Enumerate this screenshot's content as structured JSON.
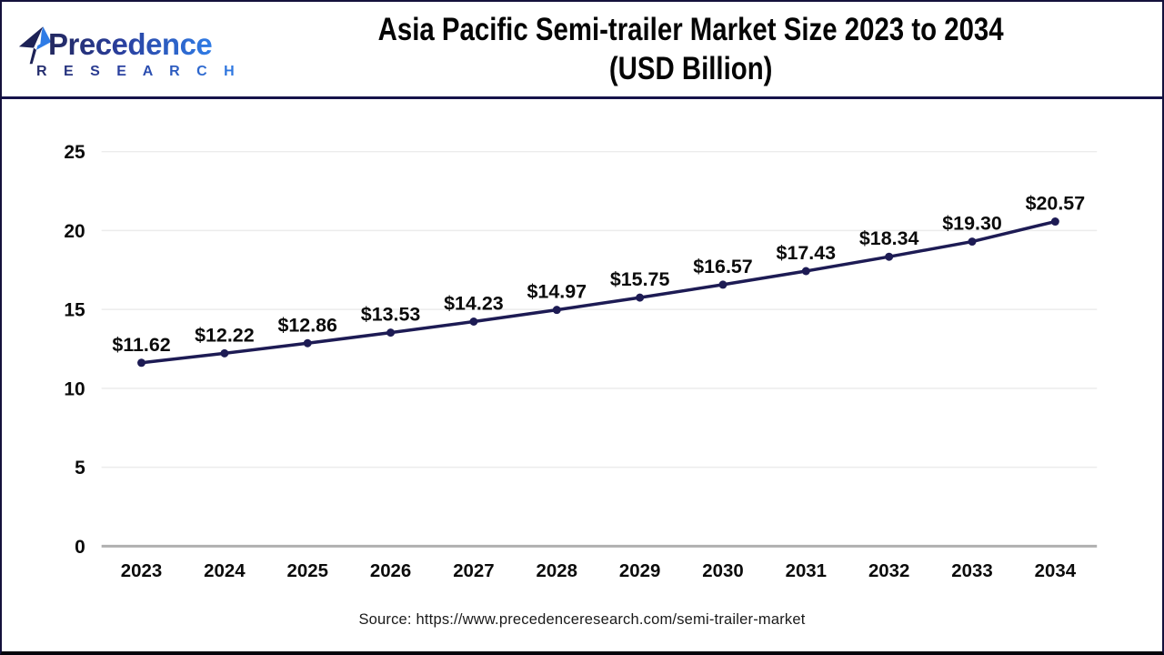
{
  "header": {
    "logo": {
      "name": "Precedence",
      "sub": "R E S E A R C H"
    },
    "title_line1": "Asia Pacific Semi-trailer Market Size 2023 to 2034",
    "title_line2": "(USD Billion)"
  },
  "chart_data": {
    "type": "line",
    "title": "Asia Pacific Semi-trailer Market Size 2023 to 2034 (USD Billion)",
    "categories": [
      "2023",
      "2024",
      "2025",
      "2026",
      "2027",
      "2028",
      "2029",
      "2030",
      "2031",
      "2032",
      "2033",
      "2034"
    ],
    "values": [
      11.62,
      12.22,
      12.86,
      13.53,
      14.23,
      14.97,
      15.75,
      16.57,
      17.43,
      18.34,
      19.3,
      20.57
    ],
    "point_labels": [
      "$11.62",
      "$12.22",
      "$12.86",
      "$13.53",
      "$14.23",
      "$14.97",
      "$15.75",
      "$16.57",
      "$17.43",
      "$18.34",
      "$19.30",
      "$20.57"
    ],
    "unit": "USD Billion",
    "xlabel": "",
    "ylabel": "",
    "ylim": [
      0,
      25
    ],
    "yticks": [
      0,
      5,
      10,
      15,
      20,
      25
    ],
    "grid": true,
    "legend": "none",
    "colors": {
      "line": "#1d1b54",
      "marker": "#1d1b54",
      "grid": "#ececec",
      "zero_axis": "#b0b0b0",
      "tick_label": "#0b0b0b",
      "data_label": "#0b0b0b",
      "logo_navy": "#23285f",
      "logo_blue": "#2f7ce6",
      "frame_navy": "#16134a"
    }
  },
  "footer": {
    "source": "Source: https://www.precedenceresearch.com/semi-trailer-market"
  }
}
